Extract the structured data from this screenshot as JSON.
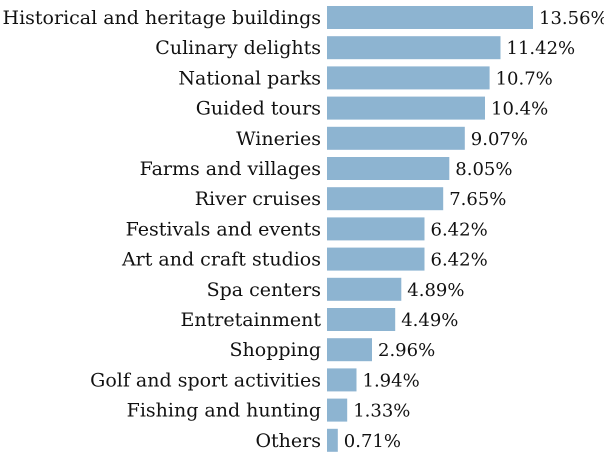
{
  "chart_data": {
    "type": "bar",
    "orientation": "horizontal",
    "categories": [
      "Historical and heritage buildings",
      "Culinary delights",
      "National parks",
      "Guided tours",
      "Wineries",
      "Farms and villages",
      "River cruises",
      "Festivals and events",
      "Art and craft studios",
      "Spa centers",
      "Entretainment",
      "Shopping",
      "Golf and sport activities",
      "Fishing and hunting",
      "Others"
    ],
    "values": [
      13.56,
      11.42,
      10.7,
      10.4,
      9.07,
      8.05,
      7.65,
      6.42,
      6.42,
      4.89,
      4.49,
      2.96,
      1.94,
      1.33,
      0.71
    ],
    "value_labels": [
      "13.56%",
      "11.42%",
      "10.7%",
      "10.4%",
      "9.07%",
      "8.05%",
      "7.65%",
      "6.42%",
      "6.42%",
      "4.89%",
      "4.49%",
      "2.96%",
      "1.94%",
      "1.33%",
      "0.71%"
    ],
    "title": "",
    "xlabel": "",
    "ylabel": "",
    "xlim": [
      0,
      13.56
    ],
    "grid": false,
    "legend": "none",
    "bar_color": "#8db4d1"
  }
}
